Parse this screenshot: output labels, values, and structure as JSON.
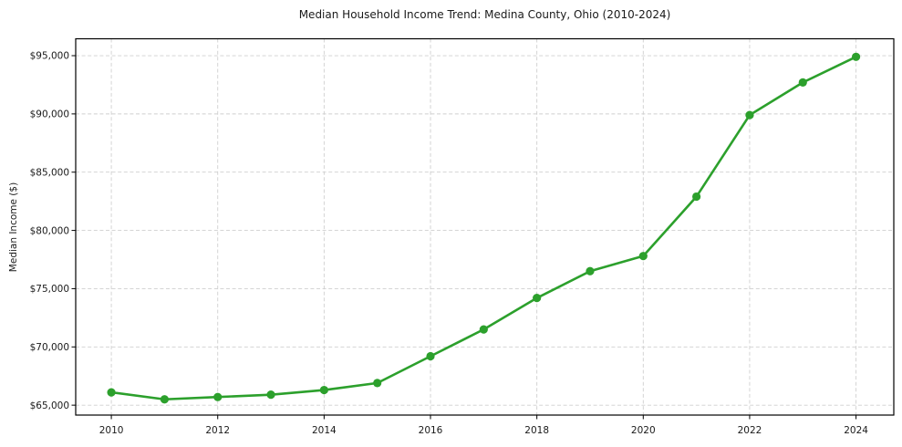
{
  "chart_data": {
    "type": "line",
    "title": "Median Household Income Trend: Medina County, Ohio (2010-2024)",
    "xlabel": "",
    "ylabel": "Median Income ($)",
    "series": [
      {
        "name": "Median Household Income",
        "x": [
          2010,
          2011,
          2012,
          2013,
          2014,
          2015,
          2016,
          2017,
          2018,
          2019,
          2020,
          2021,
          2022,
          2023,
          2024
        ],
        "values": [
          66100,
          65500,
          65700,
          65900,
          66300,
          66900,
          69200,
          71500,
          74200,
          76500,
          77800,
          82900,
          89900,
          92700,
          94900
        ]
      }
    ],
    "x_ticks": [
      2010,
      2012,
      2014,
      2016,
      2018,
      2020,
      2022,
      2024
    ],
    "x_tick_labels": [
      "2010",
      "2012",
      "2014",
      "2016",
      "2018",
      "2020",
      "2022",
      "2024"
    ],
    "y_ticks": [
      65000,
      70000,
      75000,
      80000,
      85000,
      90000,
      95000
    ],
    "y_tick_labels": [
      "$65,000",
      "$70,000",
      "$75,000",
      "$80,000",
      "$85,000",
      "$90,000",
      "$95,000"
    ],
    "xlim": [
      2009.33,
      2024.71
    ],
    "ylim": [
      64150,
      96450
    ],
    "grid": "both-dashed",
    "legend_position": "none",
    "line_color": "#2ca02c",
    "grid_color": "#cfcfcf",
    "frame_color": "#000000",
    "marker": "circle"
  }
}
